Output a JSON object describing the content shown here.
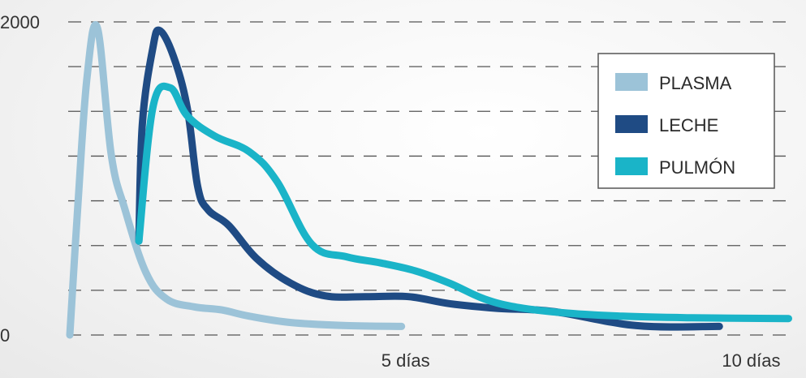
{
  "chart_data": {
    "type": "line",
    "title": "",
    "xlabel": "",
    "ylabel": "",
    "xlim": [
      0,
      10.5
    ],
    "ylim": [
      0,
      2000
    ],
    "x_tick_labels": [
      {
        "x": 5,
        "label": "5 días"
      },
      {
        "x": 10,
        "label": "10 días"
      }
    ],
    "y_tick_labels": [
      {
        "y": 2000,
        "label": "2000"
      },
      {
        "y": 0,
        "label": "0"
      }
    ],
    "grid_lines_y": [
      0,
      285.7,
      571.4,
      857.1,
      1142.9,
      1428.6,
      1714.3,
      2000
    ],
    "grid": "dashed horizontal",
    "legend_position": "top-right",
    "series": [
      {
        "name": "PLASMA",
        "color": "#9cc3d8",
        "points": [
          [
            0.0,
            0
          ],
          [
            0.12,
            850
          ],
          [
            0.25,
            1650
          ],
          [
            0.4,
            1960
          ],
          [
            0.6,
            1150
          ],
          [
            0.8,
            800
          ],
          [
            1.1,
            400
          ],
          [
            1.4,
            230
          ],
          [
            1.8,
            180
          ],
          [
            2.2,
            160
          ],
          [
            2.6,
            120
          ],
          [
            3.2,
            80
          ],
          [
            4.0,
            60
          ],
          [
            4.8,
            55
          ]
        ]
      },
      {
        "name": "LECHE",
        "color": "#1f4b84",
        "points": [
          [
            1.0,
            600
          ],
          [
            1.05,
            1350
          ],
          [
            1.2,
            1830
          ],
          [
            1.3,
            1945
          ],
          [
            1.5,
            1780
          ],
          [
            1.7,
            1450
          ],
          [
            1.85,
            950
          ],
          [
            2.0,
            800
          ],
          [
            2.3,
            700
          ],
          [
            2.7,
            490
          ],
          [
            3.2,
            330
          ],
          [
            3.7,
            250
          ],
          [
            4.3,
            245
          ],
          [
            4.9,
            245
          ],
          [
            5.5,
            200
          ],
          [
            6.2,
            170
          ],
          [
            7.0,
            150
          ],
          [
            8.2,
            60
          ],
          [
            9.4,
            55
          ]
        ]
      },
      {
        "name": "PULMÓN",
        "color": "#1ab4c8",
        "points": [
          [
            1.0,
            600
          ],
          [
            1.2,
            1450
          ],
          [
            1.45,
            1580
          ],
          [
            1.7,
            1400
          ],
          [
            2.1,
            1270
          ],
          [
            2.6,
            1170
          ],
          [
            3.0,
            980
          ],
          [
            3.5,
            580
          ],
          [
            4.0,
            500
          ],
          [
            4.5,
            460
          ],
          [
            5.0,
            410
          ],
          [
            5.5,
            330
          ],
          [
            6.0,
            230
          ],
          [
            6.5,
            175
          ],
          [
            7.2,
            140
          ],
          [
            8.0,
            120
          ],
          [
            9.0,
            110
          ],
          [
            10.4,
            105
          ]
        ]
      }
    ]
  }
}
